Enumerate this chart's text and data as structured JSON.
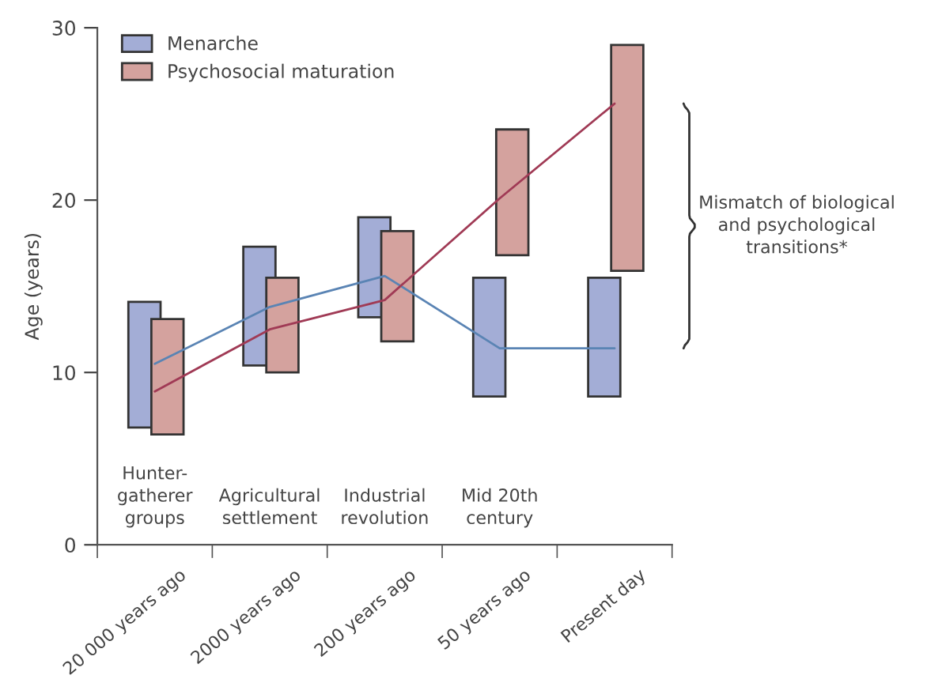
{
  "chart_data": {
    "type": "bar",
    "ylabel": "Age (years)",
    "categories": [
      "20 000 years ago",
      "2000 years ago",
      "200 years ago",
      "50 years ago",
      "Present day"
    ],
    "series": [
      {
        "name": "Menarche",
        "color": "#a3add6",
        "base": [
          6.8,
          10.4,
          13.2,
          8.6,
          8.6
        ],
        "values": [
          7.3,
          6.9,
          5.8,
          6.9,
          6.9
        ]
      },
      {
        "name": "Psychosocial maturation",
        "color": "#d4a29e",
        "base": [
          6.4,
          10.0,
          11.8,
          16.8,
          15.9
        ],
        "values": [
          6.7,
          5.5,
          6.4,
          7.3,
          13.1
        ]
      },
      {
        "type": "line",
        "color": "#5a84b4",
        "values": [
          10.5,
          13.8,
          15.6,
          11.4,
          11.4
        ]
      },
      {
        "type": "line",
        "color": "#a03a55",
        "values": [
          8.9,
          12.5,
          14.2,
          20.1,
          25.6
        ]
      }
    ],
    "ylim": [
      0,
      30
    ],
    "yticks": [
      0,
      10,
      20,
      30
    ],
    "legend": "top left",
    "annotations": [
      "Hunter-\ngatherer\ngroups",
      "Agricultural\nsettlement",
      "Industrial\nrevolution",
      "Mid 20th\ncentury",
      "Mismatch of biological\nand psychological\ntransitions*"
    ]
  }
}
